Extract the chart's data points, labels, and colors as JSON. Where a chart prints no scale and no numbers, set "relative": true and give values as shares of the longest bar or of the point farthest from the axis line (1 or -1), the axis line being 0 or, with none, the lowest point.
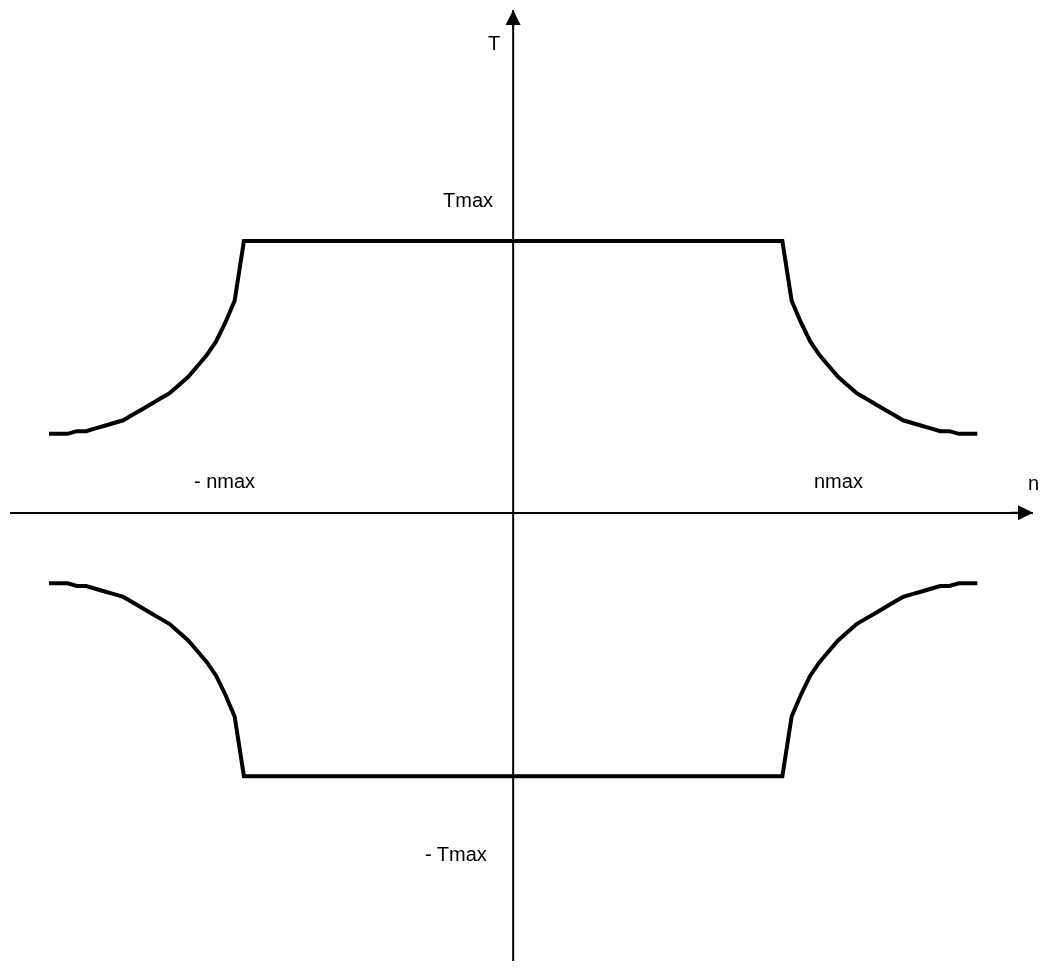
{
  "chart_data": {
    "type": "line",
    "relative": true,
    "xlabel": "n",
    "marker": "none",
    "line_style": "solid",
    "categories": [
      null,
      null,
      null,
      null,
      null,
      null,
      null,
      null,
      null,
      null,
      null,
      null,
      null,
      null,
      null,
      null,
      null,
      null,
      null,
      null,
      null,
      null,
      null,
      null,
      null,
      null,
      null,
      null,
      null,
      null,
      null,
      null,
      null,
      null,
      null,
      null,
      null,
      null,
      null,
      null,
      null,
      null,
      null,
      null,
      null,
      null,
      null,
      null,
      null,
      null,
      null,
      null,
      null,
      null,
      null,
      null,
      null,
      null,
      null,
      null,
      null,
      null,
      null,
      null,
      null,
      null,
      null,
      null,
      null,
      null,
      null,
      null,
      null,
      null,
      null,
      null,
      null,
      null,
      null,
      null,
      null,
      null,
      null,
      null,
      null,
      null,
      null,
      null,
      null,
      null,
      null,
      null,
      null,
      null,
      null,
      null,
      null,
      null,
      null,
      null,
      null
    ],
    "series": [
      {
        "color": "#000000",
        "values": [
          0.29,
          0.29,
          0.29,
          0.3,
          0.3,
          0.31,
          0.32,
          0.33,
          0.34,
          0.36,
          0.38,
          0.4,
          0.42,
          0.44,
          0.47,
          0.5,
          0.54,
          0.58,
          0.63,
          0.7,
          0.78,
          1,
          1,
          1,
          1,
          1,
          1,
          1,
          1,
          1,
          1,
          1,
          1,
          1,
          1,
          1,
          1,
          1,
          1,
          1,
          1,
          1,
          1,
          1,
          1,
          1,
          1,
          1,
          1,
          1,
          1,
          1,
          1,
          1,
          1,
          1,
          1,
          1,
          1,
          1,
          1,
          1,
          1,
          1,
          1,
          1,
          1,
          1,
          1,
          1,
          1,
          1,
          1,
          1,
          1,
          1,
          1,
          1,
          1,
          1,
          0.78,
          0.7,
          0.63,
          0.58,
          0.54,
          0.5,
          0.47,
          0.44,
          0.42,
          0.4,
          0.38,
          0.36,
          0.34,
          0.33,
          0.32,
          0.31,
          0.3,
          0.3,
          0.29,
          0.29,
          0.29
        ]
      },
      {
        "color": "#000000",
        "values": [
          -0.26,
          -0.26,
          -0.26,
          -0.27,
          -0.27,
          -0.28,
          -0.29,
          -0.3,
          -0.31,
          -0.33,
          -0.35,
          -0.37,
          -0.39,
          -0.41,
          -0.44,
          -0.47,
          -0.51,
          -0.55,
          -0.6,
          -0.67,
          -0.75,
          -0.97,
          -0.97,
          -0.97,
          -0.97,
          -0.97,
          -0.97,
          -0.97,
          -0.97,
          -0.97,
          -0.97,
          -0.97,
          -0.97,
          -0.97,
          -0.97,
          -0.97,
          -0.97,
          -0.97,
          -0.97,
          -0.97,
          -0.97,
          -0.97,
          -0.97,
          -0.97,
          -0.97,
          -0.97,
          -0.97,
          -0.97,
          -0.97,
          -0.97,
          -0.97,
          -0.97,
          -0.97,
          -0.97,
          -0.97,
          -0.97,
          -0.97,
          -0.97,
          -0.97,
          -0.97,
          -0.97,
          -0.97,
          -0.97,
          -0.97,
          -0.97,
          -0.97,
          -0.97,
          -0.97,
          -0.97,
          -0.97,
          -0.97,
          -0.97,
          -0.97,
          -0.97,
          -0.97,
          -0.97,
          -0.97,
          -0.97,
          -0.97,
          -0.97,
          -0.75,
          -0.67,
          -0.6,
          -0.55,
          -0.51,
          -0.47,
          -0.44,
          -0.41,
          -0.39,
          -0.37,
          -0.35,
          -0.33,
          -0.31,
          -0.3,
          -0.29,
          -0.28,
          -0.27,
          -0.27,
          -0.26,
          -0.26,
          -0.26
        ]
      }
    ],
    "annotations": [
      "T",
      "Tmax",
      "nmax",
      "- nmax",
      "- Tmax"
    ]
  }
}
